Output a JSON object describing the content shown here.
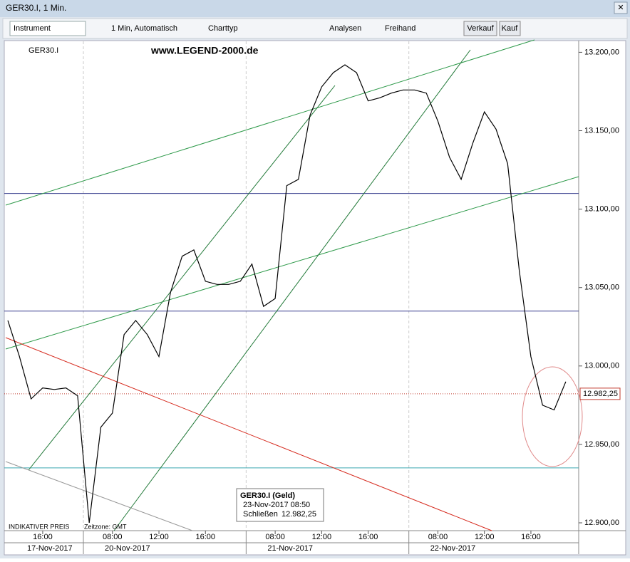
{
  "window": {
    "title": "GER30.I, 1 Min.",
    "toolbar": {
      "instrument": "Instrument",
      "interval": "1 Min, Automatisch",
      "charttype": "Charttyp",
      "analyses": "Analysen",
      "freehand": "Freihand",
      "sell": "Verkauf",
      "buy": "Kauf"
    }
  },
  "chart_data": {
    "type": "line",
    "instrument": "GER30.I",
    "watermark": "www.LEGEND-2000.de",
    "categories": [
      null,
      null,
      null,
      "16:00",
      null,
      null,
      null,
      null,
      null,
      "08:00",
      null,
      null,
      null,
      "12:00",
      null,
      null,
      null,
      "16:00",
      null,
      null,
      null,
      null,
      null,
      "08:00",
      null,
      null,
      null,
      "12:00",
      null,
      null,
      null,
      "16:00",
      null,
      null,
      null,
      null,
      null,
      "08:00",
      null,
      null,
      null,
      "12:00",
      null,
      null,
      null,
      "16:00",
      null,
      null,
      null
    ],
    "dates": [
      "17-Nov-2017",
      "20-Nov-2017",
      "21-Nov-2017",
      "22-Nov-2017"
    ],
    "series": [
      {
        "name": "GER30.I",
        "color": "#000000",
        "values": [
          13029,
          13006,
          12979,
          12986,
          12985,
          12986,
          12981,
          12900,
          12961,
          12970,
          13020,
          13029,
          13020,
          13006,
          13047,
          13070,
          13074,
          13054,
          13052,
          13052,
          13054,
          13065,
          13038,
          13043,
          13115,
          13119,
          13160,
          13178,
          13187,
          13192,
          13187,
          13169,
          13171,
          13174,
          13176,
          13176,
          13174,
          13156,
          13133,
          13119,
          13142,
          13162,
          13151,
          13129,
          13061,
          13006,
          12975,
          12972,
          12990
        ]
      }
    ],
    "ylim": [
      12895,
      13207
    ],
    "yticks": [
      {
        "value": 12900,
        "label": "12.900,00"
      },
      {
        "value": 12950,
        "label": "12.950,00"
      },
      {
        "value": 13000,
        "label": "13.000,00"
      },
      {
        "value": 13050,
        "label": "13.050,00"
      },
      {
        "value": 13100,
        "label": "13.100,00"
      },
      {
        "value": 13150,
        "label": "13.150,00"
      },
      {
        "value": 13200,
        "label": "13.200,00"
      }
    ],
    "hlines": [
      {
        "value": 13110,
        "color": "#3a3f8f"
      },
      {
        "value": 13035,
        "color": "#3a3f8f"
      },
      {
        "value": 12935,
        "color": "#3aa6b0"
      }
    ],
    "last_price": {
      "value": 12982.25,
      "label": "12.982,25",
      "color": "#c0392b"
    },
    "tooltip": {
      "title": "GER30.I (Geld)",
      "time": "23-Nov-2017 08:50",
      "close_label": "Schließen",
      "close": {
        "value": 12982.25,
        "label": "12.982,25"
      }
    },
    "footer": {
      "note": "INDIKATIVER PREIS",
      "timezone": "Zeitzone: GMT"
    }
  }
}
